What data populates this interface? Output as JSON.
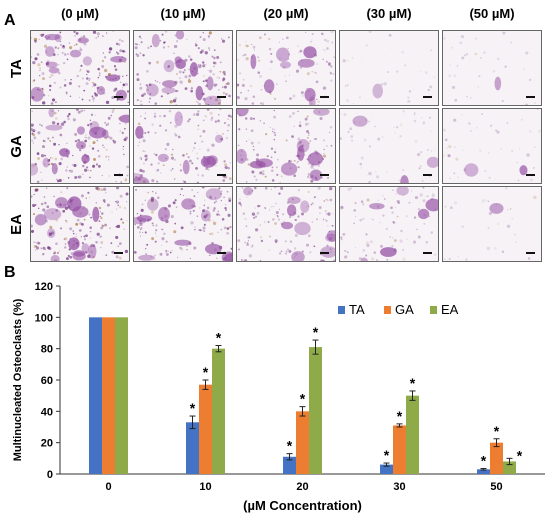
{
  "panel_a": {
    "letter": "A",
    "columns": [
      "(0 µM)",
      "(10 µM)",
      "(20 µM)",
      "(30 µM)",
      "(50 µM)"
    ],
    "rows": [
      "TA",
      "GA",
      "EA"
    ],
    "cell_density": [
      [
        0.95,
        0.85,
        0.55,
        0.06,
        0.1
      ],
      [
        0.9,
        0.7,
        0.7,
        0.22,
        0.15
      ],
      [
        0.95,
        0.85,
        0.7,
        0.45,
        0.05
      ]
    ]
  },
  "panel_b": {
    "letter": "B"
  },
  "chart_data": {
    "type": "bar",
    "categories": [
      "0",
      "10",
      "20",
      "30",
      "50"
    ],
    "xlabel": "(µM Concentration)",
    "ylabel": "Multinucleated Osteoclasts (%)",
    "ylim": [
      0,
      120
    ],
    "yticks": [
      0,
      20,
      40,
      60,
      80,
      100,
      120
    ],
    "legend_position": "top-right",
    "grid": false,
    "series": [
      {
        "name": "TA",
        "color": "#4472c4",
        "values": [
          100,
          33,
          11,
          6,
          3
        ],
        "errors": [
          0,
          4,
          2,
          1,
          0.5
        ],
        "significant": [
          false,
          true,
          true,
          true,
          true
        ]
      },
      {
        "name": "GA",
        "color": "#ed7d31",
        "values": [
          100,
          57,
          40,
          31,
          20
        ],
        "errors": [
          0,
          3,
          3,
          1,
          2.5
        ],
        "significant": [
          false,
          true,
          true,
          true,
          true
        ]
      },
      {
        "name": "EA",
        "color": "#8faa48",
        "values": [
          100,
          80,
          81,
          50,
          8
        ],
        "errors": [
          0,
          2,
          4.5,
          3,
          2
        ],
        "significant": [
          false,
          true,
          true,
          true,
          true
        ]
      }
    ],
    "significance_marker": "*"
  }
}
